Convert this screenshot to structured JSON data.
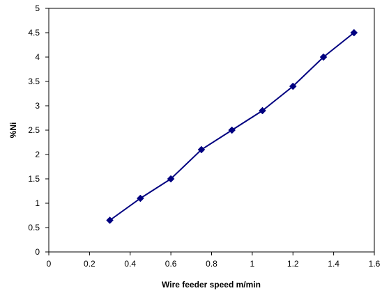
{
  "chart_data": {
    "type": "line",
    "title": "",
    "xlabel": "Wire feeder speed   m/min",
    "ylabel": "%Ni",
    "xlim": [
      0,
      1.6
    ],
    "ylim": [
      0,
      5
    ],
    "x_ticks": [
      "0",
      "0.2",
      "0.4",
      "0.6",
      "0.8",
      "1",
      "1.2",
      "1.4",
      "1.6"
    ],
    "y_ticks": [
      "0",
      "0.5",
      "1",
      "1.5",
      "2",
      "2.5",
      "3",
      "3.5",
      "4",
      "4.5",
      "5"
    ],
    "grid": false,
    "legend": "none",
    "series": [
      {
        "color": "#000080",
        "marker": "diamond",
        "x": [
          0.3,
          0.45,
          0.6,
          0.75,
          0.9,
          1.05,
          1.2,
          1.35,
          1.5
        ],
        "y": [
          0.65,
          1.1,
          1.5,
          2.1,
          2.5,
          2.9,
          3.4,
          4.0,
          4.5
        ]
      }
    ]
  }
}
